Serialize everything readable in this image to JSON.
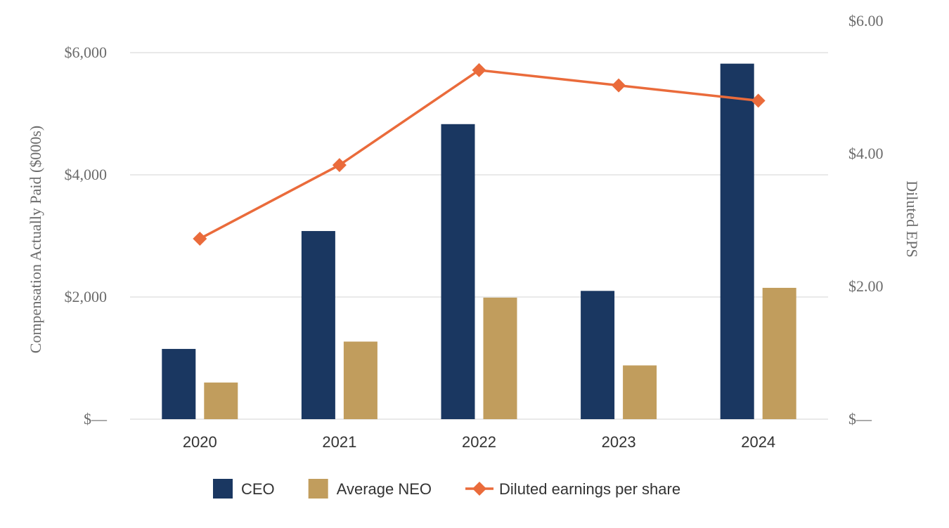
{
  "chart_data": {
    "type": "bar",
    "title": "",
    "categories": [
      "2020",
      "2021",
      "2022",
      "2023",
      "2024"
    ],
    "series": [
      {
        "name": "CEO",
        "kind": "bar",
        "axis": "left",
        "color": "#1a3761",
        "values": [
          1150,
          3080,
          4830,
          2100,
          5820
        ]
      },
      {
        "name": "Average NEO",
        "kind": "bar",
        "axis": "left",
        "color": "#c19d5d",
        "values": [
          600,
          1270,
          1990,
          880,
          2150
        ]
      },
      {
        "name": "Diluted earnings per share",
        "kind": "line",
        "axis": "right",
        "color": "#ea6b3b",
        "values": [
          2.72,
          3.83,
          5.26,
          5.03,
          4.8
        ]
      }
    ],
    "ylabel": "Compensation Actually Paid ($000s)",
    "ylabel_right": "Diluted EPS",
    "ylim": [
      0,
      6000
    ],
    "ylim_right": [
      0,
      6.0
    ],
    "yticks": [
      0,
      2000,
      4000,
      6000
    ],
    "ytick_labels": [
      "$—",
      "$2,000",
      "$4,000",
      "$6,000"
    ],
    "yticks_right": [
      0,
      2,
      4,
      6
    ],
    "ytick_labels_right": [
      "$—",
      "$2.00",
      "$4.00",
      "$6.00"
    ],
    "grid": true,
    "legend_position": "bottom"
  }
}
